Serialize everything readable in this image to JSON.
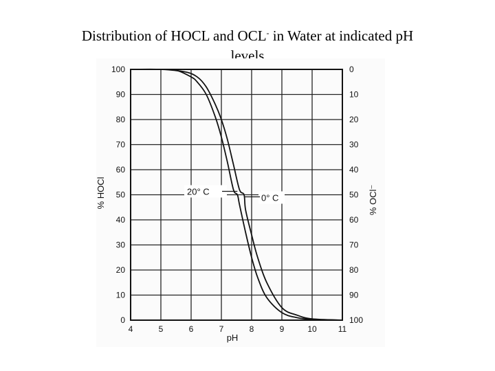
{
  "title": {
    "part1": "Distribution of HOCL and OCL",
    "sup": "-",
    "part2": " in Water at indicated pH",
    "line2": "levels"
  },
  "chart_data": {
    "type": "line",
    "xlabel": "pH",
    "ylabel_left": "% HOCl",
    "ylabel_right": "% OCl⁻",
    "xlim": [
      4,
      11
    ],
    "ylim": [
      0,
      100
    ],
    "x_ticks": [
      "4",
      "5",
      "6",
      "7",
      "8",
      "9",
      "10",
      "11"
    ],
    "y_ticks_left": [
      "0",
      "10",
      "20",
      "30",
      "40",
      "50",
      "60",
      "70",
      "80",
      "90",
      "100"
    ],
    "y_ticks_right": [
      "100",
      "90",
      "80",
      "70",
      "60",
      "50",
      "40",
      "30",
      "20",
      "10",
      "0"
    ],
    "grid": true,
    "series": [
      {
        "name": "20° C",
        "x": [
          4,
          5,
          5.5,
          6,
          6.2,
          6.5,
          6.8,
          7.0,
          7.2,
          7.4,
          7.53,
          7.6,
          7.8,
          8.0,
          8.2,
          8.5,
          9,
          9.5,
          10,
          11
        ],
        "y": [
          100,
          100,
          99.7,
          97,
          95,
          90,
          81,
          73,
          63,
          52,
          50,
          46,
          35,
          25,
          17,
          9,
          3,
          1,
          0.3,
          0
        ]
      },
      {
        "name": "0° C",
        "x": [
          4,
          5,
          5.8,
          6.2,
          6.5,
          6.8,
          7.0,
          7.2,
          7.4,
          7.6,
          7.75,
          7.8,
          8.0,
          8.2,
          8.5,
          9,
          9.5,
          10,
          11
        ],
        "y": [
          100,
          100,
          99,
          97,
          93,
          86,
          80,
          72,
          62,
          52,
          50,
          44,
          34,
          25,
          15,
          5,
          2,
          0.5,
          0
        ]
      }
    ]
  }
}
